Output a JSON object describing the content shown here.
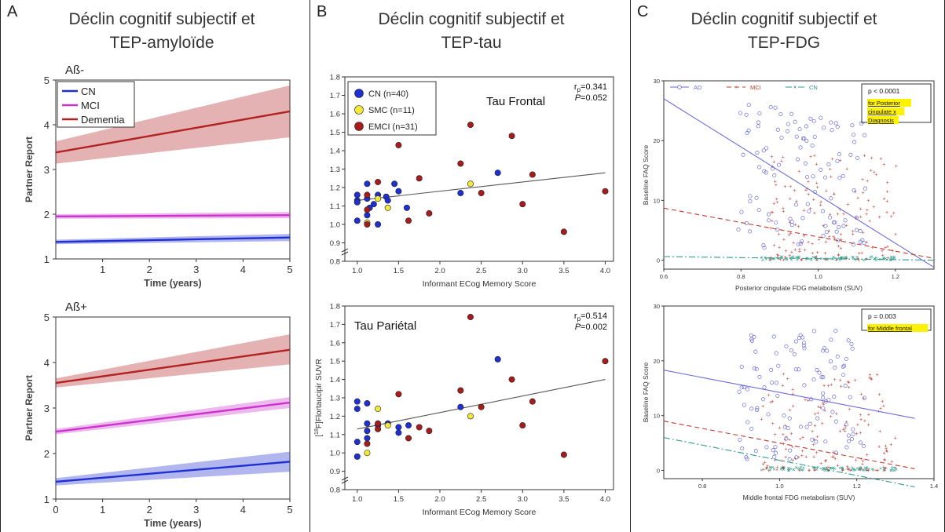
{
  "panels": {
    "a": {
      "letter": "A",
      "title_l1": "Déclin cognitif subjectif et",
      "title_l2": "TEP-amyloïde"
    },
    "b": {
      "letter": "B",
      "title_l1": "Déclin cognitif subjectif et",
      "title_l2": "TEP-tau"
    },
    "c": {
      "letter": "C",
      "title_l1": "Déclin cognitif subjectif et",
      "title_l2": "TEP-FDG"
    }
  },
  "colors": {
    "cn": "#1f2fd0",
    "mci": "#cc33cc",
    "dementia": "#b22222",
    "smc": "#f2ea3a",
    "emci": "#a61c1c",
    "fdg_ad": "#6a6ad8",
    "fdg_mci": "#c0392b",
    "fdg_cn": "#2e9a8a"
  },
  "chart_data": [
    {
      "id": "a_top",
      "type": "line",
      "panel_label": "Aß-",
      "xlabel": "Time (years)",
      "ylabel": "Partner Report",
      "xlim": [
        0,
        5
      ],
      "ylim": [
        1,
        5
      ],
      "xticks": [
        1,
        2,
        3,
        4,
        5
      ],
      "yticks": [
        1,
        2,
        3,
        4,
        5
      ],
      "legend": {
        "placement": "top-left",
        "entries": [
          "CN",
          "MCI",
          "Dementia"
        ]
      },
      "series": [
        {
          "name": "CN",
          "color": "cn",
          "start": [
            0,
            1.38
          ],
          "end": [
            5,
            1.48
          ],
          "lo_end": 1.4,
          "hi_end": 1.56,
          "lo_start": 1.33,
          "hi_start": 1.43
        },
        {
          "name": "MCI",
          "color": "mci",
          "start": [
            0,
            1.95
          ],
          "end": [
            5,
            1.98
          ],
          "lo_end": 1.91,
          "hi_end": 2.05,
          "lo_start": 1.9,
          "hi_start": 2.0
        },
        {
          "name": "Dementia",
          "color": "dementia",
          "start": [
            0,
            3.38
          ],
          "end": [
            5,
            4.3
          ],
          "lo_end": 3.72,
          "hi_end": 4.88,
          "lo_start": 3.13,
          "hi_start": 3.63
        }
      ]
    },
    {
      "id": "a_bottom",
      "type": "line",
      "panel_label": "Aß+",
      "xlabel": "Time (years)",
      "ylabel": "Partner Report",
      "xlim": [
        0,
        5
      ],
      "ylim": [
        1,
        5
      ],
      "xticks": [
        0,
        1,
        2,
        3,
        4,
        5
      ],
      "yticks": [
        1,
        2,
        3,
        4,
        5
      ],
      "series": [
        {
          "name": "CN",
          "color": "cn",
          "start": [
            0,
            1.38
          ],
          "end": [
            5,
            1.82
          ],
          "lo_end": 1.6,
          "hi_end": 2.04,
          "lo_start": 1.3,
          "hi_start": 1.46
        },
        {
          "name": "MCI",
          "color": "mci",
          "start": [
            0,
            2.48
          ],
          "end": [
            5,
            3.12
          ],
          "lo_end": 3.0,
          "hi_end": 3.24,
          "lo_start": 2.42,
          "hi_start": 2.54
        },
        {
          "name": "Dementia",
          "color": "dementia",
          "start": [
            0,
            3.55
          ],
          "end": [
            5,
            4.28
          ],
          "lo_end": 3.96,
          "hi_end": 4.62,
          "lo_start": 3.45,
          "hi_start": 3.65
        }
      ]
    },
    {
      "id": "b_top",
      "type": "scatter",
      "annotation": "Tau Frontal",
      "stat_r": "r",
      "stat_r_sub": "p",
      "stat_r_val": "=0.341",
      "stat_p": "P",
      "stat_p_val": "=0.052",
      "xlabel": "Informant ECog Memory Score",
      "ylabel": "",
      "xlim": [
        0.85,
        4.1
      ],
      "ylim": [
        0.8,
        1.8
      ],
      "xticks": [
        1.0,
        1.5,
        2.0,
        2.5,
        3.0,
        3.5,
        4.0
      ],
      "xtick_labels": [
        "1.0",
        "1.5",
        "2.0",
        "2.5",
        "3.0",
        "3.5",
        "4.0"
      ],
      "yticks": [
        0.8,
        0.9,
        1.0,
        1.1,
        1.2,
        1.3,
        1.4,
        1.5,
        1.6,
        1.7,
        1.8
      ],
      "ytick_labels": [
        "0.8",
        "0.9",
        "1.0",
        "1.1",
        "1.2",
        "1.3",
        "1.4",
        "1.5",
        "1.6",
        "1.7",
        "1.8"
      ],
      "legend": {
        "placement": "top-left",
        "entries": [
          {
            "label": "CN (n=40)",
            "color": "cn"
          },
          {
            "label": "SMC (n=11)",
            "color": "smc"
          },
          {
            "label": "EMCI (n=31)",
            "color": "emci"
          }
        ]
      },
      "fit": [
        [
          1.0,
          1.13
        ],
        [
          4.0,
          1.28
        ]
      ],
      "points": [
        [
          1.0,
          1.02,
          "cn"
        ],
        [
          1.0,
          1.13,
          "cn"
        ],
        [
          1.0,
          1.16,
          "cn"
        ],
        [
          1.0,
          1.12,
          "cn"
        ],
        [
          1.12,
          1.14,
          "cn"
        ],
        [
          1.12,
          1.22,
          "cn"
        ],
        [
          1.12,
          1.05,
          "cn"
        ],
        [
          1.15,
          1.09,
          "cn"
        ],
        [
          1.2,
          1.11,
          "cn"
        ],
        [
          1.25,
          1.16,
          "cn"
        ],
        [
          1.35,
          1.15,
          "cn"
        ],
        [
          1.37,
          1.13,
          "cn"
        ],
        [
          1.45,
          1.22,
          "cn"
        ],
        [
          1.5,
          1.18,
          "cn"
        ],
        [
          1.6,
          1.09,
          "cn"
        ],
        [
          2.25,
          1.17,
          "cn"
        ],
        [
          2.7,
          1.28,
          "cn"
        ],
        [
          1.25,
          1.0,
          "cn"
        ],
        [
          1.12,
          1.01,
          "smc"
        ],
        [
          1.25,
          1.14,
          "smc"
        ],
        [
          1.37,
          1.09,
          "smc"
        ],
        [
          2.37,
          1.22,
          "smc"
        ],
        [
          1.12,
          1.0,
          "emci"
        ],
        [
          1.12,
          1.16,
          "emci"
        ],
        [
          1.25,
          1.23,
          "emci"
        ],
        [
          1.12,
          1.08,
          "emci"
        ],
        [
          1.5,
          1.43,
          "emci"
        ],
        [
          1.62,
          1.02,
          "emci"
        ],
        [
          1.75,
          1.25,
          "emci"
        ],
        [
          1.87,
          1.06,
          "emci"
        ],
        [
          2.25,
          1.33,
          "emci"
        ],
        [
          2.37,
          1.54,
          "emci"
        ],
        [
          2.5,
          1.17,
          "emci"
        ],
        [
          2.87,
          1.48,
          "emci"
        ],
        [
          3.0,
          1.11,
          "emci"
        ],
        [
          3.12,
          1.27,
          "emci"
        ],
        [
          3.5,
          0.96,
          "emci"
        ],
        [
          4.0,
          1.18,
          "emci"
        ]
      ]
    },
    {
      "id": "b_bottom",
      "type": "scatter",
      "annotation": "Tau Pariétal",
      "stat_r": "r",
      "stat_r_sub": "p",
      "stat_r_val": "=0.514",
      "stat_p": "P",
      "stat_p_val": "=0.002",
      "xlabel": "Informant ECog Memory Score",
      "ylabel_sup": "18",
      "ylabel_pre": "[",
      "ylabel_post": "F]Flortaucipir SUVR",
      "xlim": [
        0.85,
        4.1
      ],
      "ylim": [
        0.8,
        1.8
      ],
      "xticks": [
        1.0,
        1.5,
        2.0,
        2.5,
        3.0,
        3.5,
        4.0
      ],
      "xtick_labels": [
        "1.0",
        "1.5",
        "2.0",
        "2.5",
        "3.0",
        "3.5",
        "4.0"
      ],
      "yticks": [
        0.8,
        0.9,
        1.0,
        1.1,
        1.2,
        1.3,
        1.4,
        1.5,
        1.6,
        1.7,
        1.8
      ],
      "ytick_labels": [
        "0.8",
        "0.9",
        "1.0",
        "1.1",
        "1.2",
        "1.3",
        "1.4",
        "1.5",
        "1.6",
        "1.7",
        "1.8"
      ],
      "fit": [
        [
          1.0,
          1.13
        ],
        [
          4.0,
          1.4
        ]
      ],
      "points": [
        [
          1.0,
          1.28,
          "cn"
        ],
        [
          1.0,
          1.24,
          "cn"
        ],
        [
          1.0,
          0.98,
          "cn"
        ],
        [
          1.0,
          1.06,
          "cn"
        ],
        [
          1.12,
          1.08,
          "cn"
        ],
        [
          1.12,
          1.12,
          "cn"
        ],
        [
          1.12,
          1.16,
          "cn"
        ],
        [
          1.25,
          1.15,
          "cn"
        ],
        [
          1.37,
          1.16,
          "cn"
        ],
        [
          1.5,
          1.14,
          "cn"
        ],
        [
          1.5,
          1.11,
          "cn"
        ],
        [
          1.62,
          1.15,
          "cn"
        ],
        [
          2.25,
          1.25,
          "cn"
        ],
        [
          2.7,
          1.51,
          "cn"
        ],
        [
          1.12,
          1.27,
          "cn"
        ],
        [
          1.12,
          1.0,
          "smc"
        ],
        [
          1.25,
          1.24,
          "smc"
        ],
        [
          1.37,
          1.15,
          "smc"
        ],
        [
          2.37,
          1.2,
          "smc"
        ],
        [
          1.12,
          1.05,
          "emci"
        ],
        [
          1.25,
          1.16,
          "emci"
        ],
        [
          1.25,
          1.13,
          "emci"
        ],
        [
          1.5,
          1.32,
          "emci"
        ],
        [
          1.62,
          1.08,
          "emci"
        ],
        [
          1.75,
          1.14,
          "emci"
        ],
        [
          1.87,
          1.12,
          "emci"
        ],
        [
          2.25,
          1.34,
          "emci"
        ],
        [
          2.37,
          1.74,
          "emci"
        ],
        [
          2.5,
          1.25,
          "emci"
        ],
        [
          2.87,
          1.4,
          "emci"
        ],
        [
          3.0,
          1.15,
          "emci"
        ],
        [
          3.12,
          1.28,
          "emci"
        ],
        [
          3.5,
          0.99,
          "emci"
        ],
        [
          4.0,
          1.5,
          "emci"
        ]
      ]
    },
    {
      "id": "c_top",
      "type": "scatter",
      "xlabel": "Posterior cingulate FDG metabolism (SUV)",
      "ylabel": "Baseline FAQ Score",
      "xlim": [
        0.6,
        1.3
      ],
      "ylim": [
        -1.5,
        30
      ],
      "xticks": [
        0.6,
        0.8,
        1.0,
        1.2
      ],
      "xtick_labels": [
        "0.6",
        "0.8",
        "1.0",
        "1.2"
      ],
      "yticks": [
        0,
        10,
        20,
        30
      ],
      "ytick_labels": [
        "0",
        "10",
        "20",
        "30"
      ],
      "legend": {
        "placement": "top",
        "entries": [
          {
            "label": "AD",
            "color": "fdg_ad"
          },
          {
            "label": "MCI",
            "color": "fdg_mci"
          },
          {
            "label": "CN",
            "color": "fdg_cn"
          }
        ]
      },
      "note_p": "p < 0.0001",
      "note_hl": [
        "for Posterior",
        "cingulate x",
        "Diagnosis"
      ],
      "fits": [
        {
          "color": "fdg_ad",
          "from": [
            0.6,
            27
          ],
          "to": [
            1.3,
            -1.2
          ],
          "dash": ""
        },
        {
          "color": "fdg_mci",
          "from": [
            0.6,
            8.7
          ],
          "to": [
            1.3,
            0.3
          ],
          "dash": "6,4"
        },
        {
          "color": "fdg_cn",
          "from": [
            0.6,
            0.6
          ],
          "to": [
            1.3,
            0.0
          ],
          "dash": "8,3,2,3"
        }
      ]
    },
    {
      "id": "c_bottom",
      "type": "scatter",
      "xlabel": "Middle frontal FDG metabolism (SUV)",
      "ylabel": "Baseline FAQ Score",
      "xlim": [
        0.7,
        1.4
      ],
      "ylim": [
        -1.5,
        30
      ],
      "xticks": [
        0.8,
        1.0,
        1.2,
        1.4
      ],
      "xtick_labels": [
        "0.8",
        "1.0",
        "1.2",
        "1.4"
      ],
      "yticks": [
        0,
        10,
        20,
        30
      ],
      "ytick_labels": [
        "0",
        "10",
        "20",
        "30"
      ],
      "note_p": "p = 0.003",
      "note_hl": [
        "for Middle frontal"
      ],
      "fits": [
        {
          "color": "fdg_ad",
          "from": [
            0.7,
            18.3
          ],
          "to": [
            1.35,
            9.5
          ],
          "dash": ""
        },
        {
          "color": "fdg_mci",
          "from": [
            0.7,
            9.0
          ],
          "to": [
            1.35,
            0.3
          ],
          "dash": "6,4"
        },
        {
          "color": "fdg_cn",
          "from": [
            0.7,
            6.0
          ],
          "to": [
            1.35,
            -3.0
          ],
          "dash": "8,3,2,3"
        }
      ]
    }
  ]
}
